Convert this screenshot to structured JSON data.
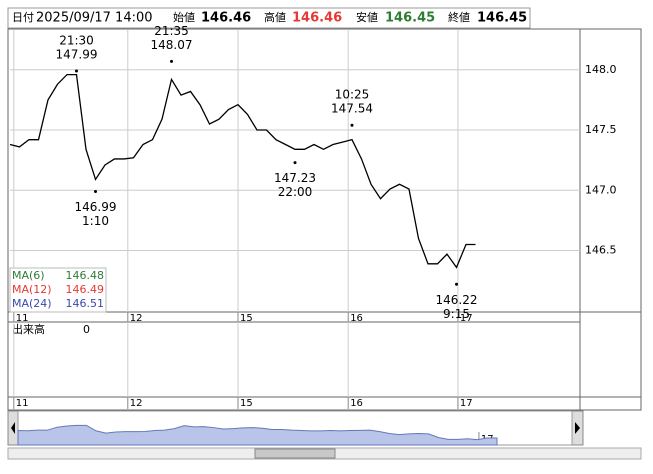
{
  "header": {
    "date_label": "日付",
    "datetime": "2025/09/17 14:00",
    "open_label": "始値",
    "open": 146.46,
    "high_label": "高値",
    "high": 146.46,
    "low_label": "安値",
    "low": 146.45,
    "close_label": "終値",
    "close": 146.45
  },
  "chart_data": {
    "type": "line",
    "color": "#000000",
    "x": [
      0,
      2,
      4,
      6,
      8,
      10,
      12,
      14,
      16,
      18,
      20,
      22,
      24,
      26,
      28,
      30,
      32,
      34,
      36,
      38,
      40,
      42,
      44,
      46,
      48,
      50,
      52,
      54,
      56,
      58,
      60,
      62,
      64,
      66,
      68,
      70,
      72,
      74,
      76,
      78,
      80,
      82,
      84,
      86,
      88,
      90,
      92,
      94,
      96,
      98
    ],
    "values": [
      147.38,
      147.36,
      147.42,
      147.42,
      147.75,
      147.88,
      147.96,
      147.96,
      147.34,
      147.09,
      147.21,
      147.26,
      147.26,
      147.27,
      147.38,
      147.42,
      147.59,
      147.92,
      147.79,
      147.82,
      147.71,
      147.55,
      147.59,
      147.67,
      147.71,
      147.63,
      147.5,
      147.5,
      147.42,
      147.38,
      147.34,
      147.34,
      147.38,
      147.34,
      147.38,
      147.4,
      147.42,
      147.26,
      147.05,
      146.93,
      147.01,
      147.05,
      147.01,
      146.6,
      146.39,
      146.39,
      146.47,
      146.36,
      146.55,
      146.55
    ],
    "xlim": [
      0,
      120
    ],
    "ylim": [
      145.99,
      148.33
    ],
    "xticks": [
      {
        "value": 0.8,
        "label": "11"
      },
      {
        "value": 24.8,
        "label": "12"
      },
      {
        "value": 48,
        "label": "15"
      },
      {
        "value": 71.2,
        "label": "16"
      },
      {
        "value": 94.3,
        "label": "17"
      }
    ],
    "yticks": [
      {
        "value": 148,
        "label": "148.0"
      },
      147.5,
      {
        "value": 147,
        "label": "147.0"
      },
      146.5
    ],
    "grid": true,
    "annotations": [
      {
        "x": 14,
        "value": 147.99,
        "time": "21:30",
        "position": "above"
      },
      {
        "x": 34,
        "value": 148.07,
        "time": "21:35",
        "position": "above"
      },
      {
        "x": 18,
        "value": 146.99,
        "time": "1:10",
        "position": "below"
      },
      {
        "x": 60,
        "value": 147.23,
        "time": "22:00",
        "position": "below"
      },
      {
        "x": 72,
        "value": 147.54,
        "time": "10:25",
        "position": "above"
      },
      {
        "x": 94,
        "value": 146.22,
        "time": "9:15",
        "position": "below"
      }
    ],
    "ma_legend": [
      {
        "name": "MA(6)",
        "value": 146.48,
        "color": "#2e7d32"
      },
      {
        "name": "MA(12)",
        "value": 146.49,
        "color": "#e53935"
      },
      {
        "name": "MA(24)",
        "value": 146.51,
        "color": "#3949ab"
      }
    ],
    "volume": {
      "label": "出来高",
      "value": 0
    }
  }
}
